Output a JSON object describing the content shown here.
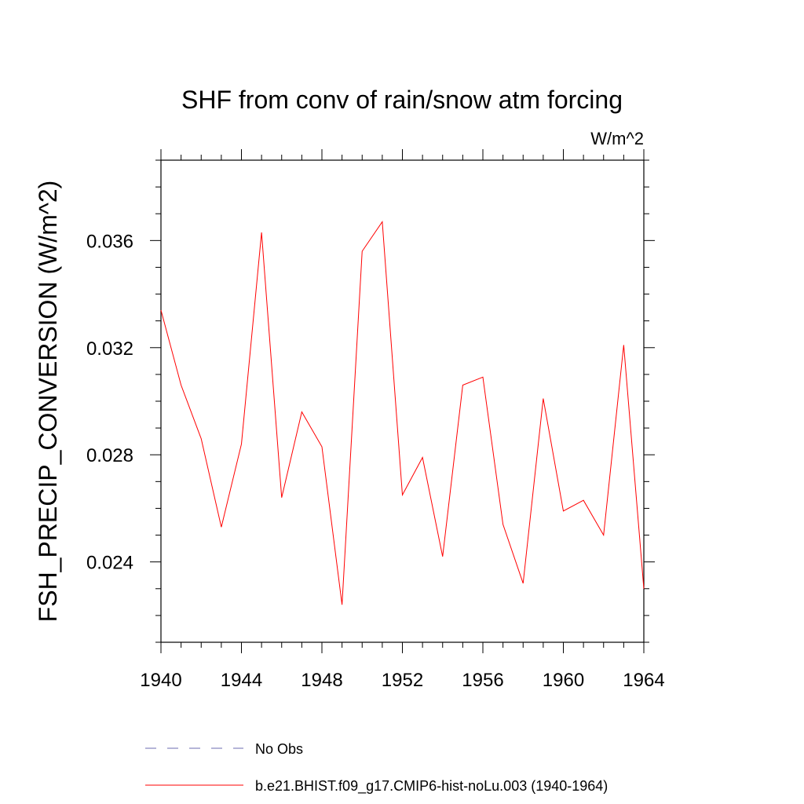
{
  "chart_data": {
    "type": "line",
    "title": "SHF from conv of rain/snow atm forcing",
    "units": "W/m^2",
    "ylabel": "FSH_PRECIP_CONVERSION  (W/m^2)",
    "xlabel": "",
    "xlim": [
      1940,
      1964
    ],
    "ylim": [
      0.021,
      0.039
    ],
    "x_ticks": [
      "1940",
      "1944",
      "1948",
      "1952",
      "1956",
      "1960",
      "1964"
    ],
    "y_ticks": [
      "0.024",
      "0.028",
      "0.032",
      "0.036"
    ],
    "grid": false,
    "legend_position": "bottom",
    "series": [
      {
        "name": "b.e21.BHIST.f09_g17.CMIP6-hist-noLu.003 (1940-1964)",
        "color": "#ff0000",
        "style": "solid",
        "x": [
          1940,
          1941,
          1942,
          1943,
          1944,
          1945,
          1946,
          1947,
          1948,
          1949,
          1950,
          1951,
          1952,
          1953,
          1954,
          1955,
          1956,
          1957,
          1958,
          1959,
          1960,
          1961,
          1962,
          1963,
          1964
        ],
        "values": [
          0.0334,
          0.0306,
          0.0286,
          0.0253,
          0.0284,
          0.0363,
          0.0264,
          0.0296,
          0.0283,
          0.0224,
          0.0356,
          0.0367,
          0.0265,
          0.0279,
          0.0242,
          0.0306,
          0.0309,
          0.0254,
          0.0232,
          0.0301,
          0.0259,
          0.0263,
          0.025,
          0.0321,
          0.023
        ]
      }
    ],
    "legend": [
      {
        "label": "No Obs",
        "color": "#6b6bb0",
        "style": "dashed"
      },
      {
        "label": "b.e21.BHIST.f09_g17.CMIP6-hist-noLu.003 (1940-1964)",
        "color": "#ff0000",
        "style": "solid"
      }
    ]
  }
}
